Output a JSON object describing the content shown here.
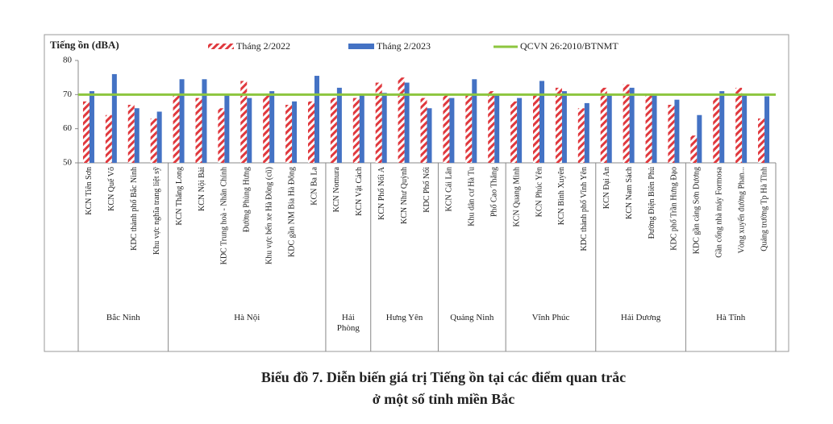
{
  "chart_data": {
    "type": "bar",
    "ylabel": "Tiếng ồn (dBA)",
    "ylim": [
      50,
      80
    ],
    "yticks": [
      50,
      60,
      70,
      80
    ],
    "groups": [
      {
        "name": "Bắc Ninh",
        "categories": [
          "KCN Tiên Sơn",
          "KCN Quế Võ",
          "KDC thành phố Bắc Ninh",
          "Khu vực nghĩa trang liệt sỹ"
        ]
      },
      {
        "name": "Hà Nội",
        "categories": [
          "KCN Thăng Long",
          "KCN Nội Bài",
          "KDC Trung hoà - Nhân Chính",
          "Đường Phùng Hưng",
          "Khu vực bến xe Hà Đông (cũ)",
          "KDC gần NM Bia Hà Đông",
          "KCN Ba La"
        ]
      },
      {
        "name": "Hải Phòng",
        "categories": [
          "KCN Nomura",
          "KCN Vật Cách"
        ]
      },
      {
        "name": "Hưng Yên",
        "categories": [
          "KCN Phố Nối A",
          "KCN Như Quỳnh",
          "KDC Phố Nối"
        ]
      },
      {
        "name": "Quảng Ninh",
        "categories": [
          "KCN Cái Lân",
          "Khu dân cư Hà Tu",
          "Phố Cao Thắng"
        ]
      },
      {
        "name": "Vĩnh Phúc",
        "categories": [
          "KCN Quang Minh",
          "KCN Phúc Yên",
          "KCN Bình Xuyên",
          "KDC thành phố Vĩnh Yên"
        ]
      },
      {
        "name": "Hải Dương",
        "categories": [
          "KCN Đại An",
          "KCN Nam Sách",
          "Đường Điện Biên Phủ",
          "KDC phố Trần Hưng Đạo"
        ]
      },
      {
        "name": "Hà Tĩnh",
        "categories": [
          "KDC gần cảng Sơn Dương",
          "Gần cổng nhà máy Formosa",
          "Vòng xuyến đường Phan...",
          "Quảng trường Tp Hà Tĩnh"
        ]
      }
    ],
    "series": [
      {
        "name": "Tháng 2/2022",
        "color": "#e0393e",
        "pattern": "hatch",
        "values": [
          68,
          64,
          67,
          63,
          70,
          69,
          66,
          74,
          70,
          67,
          68,
          69,
          69,
          73.5,
          75,
          69,
          70,
          70,
          71,
          68,
          70,
          72,
          66,
          72,
          73,
          70,
          67,
          58,
          69,
          72,
          63
        ]
      },
      {
        "name": "Tháng 2/2023",
        "color": "#4472c4",
        "values": [
          71,
          76,
          66,
          65,
          74.5,
          74.5,
          70,
          69,
          71,
          68,
          75.5,
          72,
          70,
          70.5,
          73.5,
          66,
          69,
          74.5,
          70,
          69,
          74,
          71,
          67.5,
          70,
          72,
          70,
          68.5,
          64,
          71,
          70,
          69.5
        ]
      }
    ],
    "reference_line": {
      "name": "QCVN 26:2010/BTNMT",
      "color": "#8dc63f",
      "value": 70
    },
    "caption": [
      "Biểu đồ 7. Diễn biến giá trị Tiếng ồn tại các điểm quan trắc",
      "ở một số tỉnh miền Bắc"
    ]
  }
}
